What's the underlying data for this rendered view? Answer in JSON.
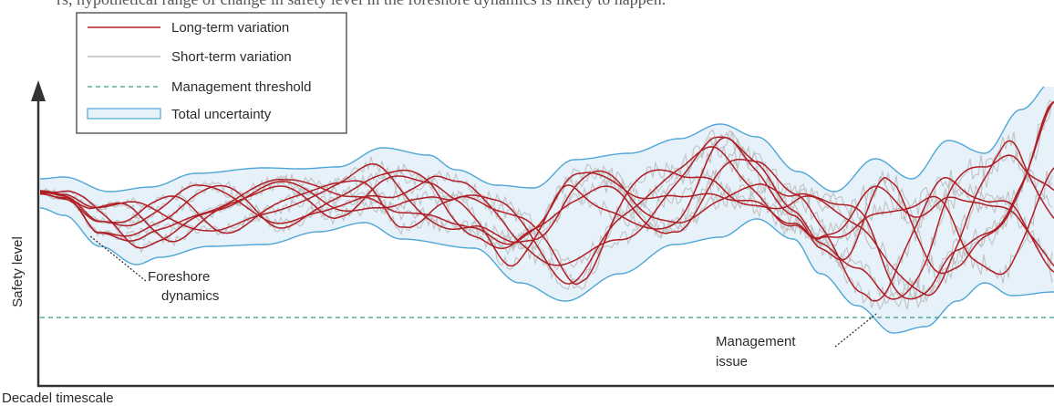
{
  "top_text": "rs, hypothetical range of change in safety level in the foreshore dynamics is likely to happen.",
  "legend": [
    {
      "label": "Long-term variation",
      "style": "long-term"
    },
    {
      "label": "Short-term variation",
      "style": "short-term"
    },
    {
      "label": "Management threshold",
      "style": "threshold"
    },
    {
      "label": "Total uncertainty",
      "style": "uncertainty"
    }
  ],
  "axes": {
    "ylabel": "Safety level",
    "xlabel": "Decadel timescale"
  },
  "annotations": {
    "foreshore_line1": "Foreshore",
    "foreshore_line2": "dynamics",
    "management_line1": "Management",
    "management_line2": "issue"
  },
  "colors": {
    "long_term": "#b11e24",
    "short_term": "#bdbdbd",
    "threshold": "#3a9a8a",
    "uncertainty_edge": "#4ea6d8",
    "uncertainty_fill": "#e6f1fa"
  }
}
